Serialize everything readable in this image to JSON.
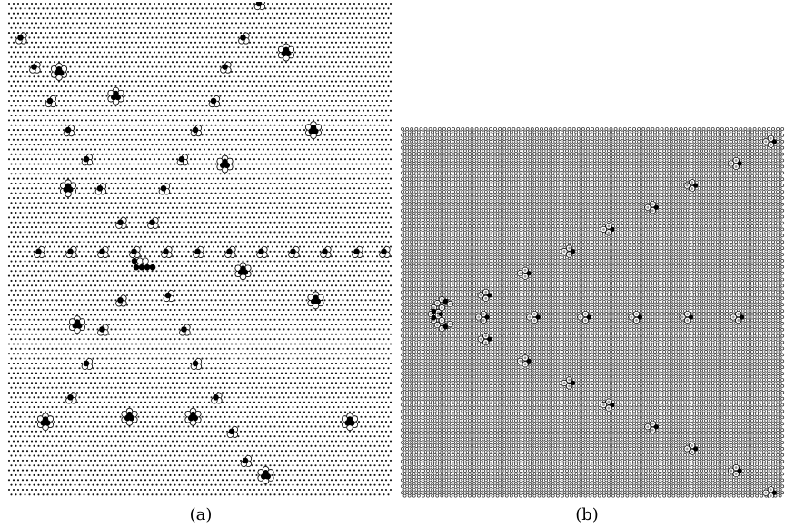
{
  "figure": {
    "panels": [
      {
        "id": "a",
        "caption": "(a)",
        "lattice": "hexagonal",
        "background_site_style": "small-black-dot",
        "clusters": [
          {
            "kind": "trimer",
            "gx": 55,
            "gy": 0
          },
          {
            "kind": "trimer",
            "gx": 2,
            "gy": 7
          },
          {
            "kind": "trimer",
            "gx": 51,
            "gy": 7
          },
          {
            "kind": "trimer",
            "gx": 5,
            "gy": 13
          },
          {
            "kind": "hexamer",
            "gx": 11,
            "gy": 14
          },
          {
            "kind": "trimer",
            "gx": 47,
            "gy": 13
          },
          {
            "kind": "hexamer",
            "gx": 61,
            "gy": 10
          },
          {
            "kind": "hexamer",
            "gx": 23,
            "gy": 19
          },
          {
            "kind": "trimer",
            "gx": 9,
            "gy": 20
          },
          {
            "kind": "trimer",
            "gx": 45,
            "gy": 20
          },
          {
            "kind": "trimer",
            "gx": 13,
            "gy": 26
          },
          {
            "kind": "trimer",
            "gx": 41,
            "gy": 26
          },
          {
            "kind": "hexamer",
            "gx": 67,
            "gy": 26
          },
          {
            "kind": "trimer",
            "gx": 17,
            "gy": 32
          },
          {
            "kind": "trimer",
            "gx": 38,
            "gy": 32
          },
          {
            "kind": "hexamer",
            "gx": 47,
            "gy": 33
          },
          {
            "kind": "hexamer",
            "gx": 13,
            "gy": 38
          },
          {
            "kind": "trimer",
            "gx": 20,
            "gy": 38
          },
          {
            "kind": "trimer",
            "gx": 34,
            "gy": 38
          },
          {
            "kind": "trimer",
            "gx": 24,
            "gy": 45
          },
          {
            "kind": "trimer",
            "gx": 31,
            "gy": 45
          },
          {
            "kind": "trimer",
            "gx": 6,
            "gy": 51
          },
          {
            "kind": "trimer",
            "gx": 13,
            "gy": 51
          },
          {
            "kind": "trimer",
            "gx": 20,
            "gy": 51
          },
          {
            "kind": "trimer",
            "gx": 27,
            "gy": 51
          },
          {
            "kind": "trimer",
            "gx": 34,
            "gy": 51
          },
          {
            "kind": "trimer",
            "gx": 41,
            "gy": 51
          },
          {
            "kind": "trimer",
            "gx": 48,
            "gy": 51
          },
          {
            "kind": "trimer",
            "gx": 55,
            "gy": 51
          },
          {
            "kind": "trimer",
            "gx": 62,
            "gy": 51
          },
          {
            "kind": "trimer",
            "gx": 69,
            "gy": 51
          },
          {
            "kind": "trimer",
            "gx": 76,
            "gy": 51
          },
          {
            "kind": "trimer",
            "gx": 82,
            "gy": 51
          },
          {
            "kind": "chain",
            "gx": 28,
            "gy": 52
          },
          {
            "kind": "hexamer",
            "gx": 51,
            "gy": 55
          },
          {
            "kind": "trimer",
            "gx": 24,
            "gy": 61
          },
          {
            "kind": "trimer",
            "gx": 35,
            "gy": 60
          },
          {
            "kind": "hexamer",
            "gx": 67,
            "gy": 61
          },
          {
            "kind": "hexamer",
            "gx": 15,
            "gy": 66
          },
          {
            "kind": "trimer",
            "gx": 20,
            "gy": 67
          },
          {
            "kind": "trimer",
            "gx": 38,
            "gy": 67
          },
          {
            "kind": "trimer",
            "gx": 17,
            "gy": 74
          },
          {
            "kind": "trimer",
            "gx": 41,
            "gy": 74
          },
          {
            "kind": "trimer",
            "gx": 13,
            "gy": 81
          },
          {
            "kind": "trimer",
            "gx": 45,
            "gy": 81
          },
          {
            "kind": "hexamer",
            "gx": 8,
            "gy": 86
          },
          {
            "kind": "hexamer",
            "gx": 26,
            "gy": 85
          },
          {
            "kind": "hexamer",
            "gx": 40,
            "gy": 85
          },
          {
            "kind": "hexamer",
            "gx": 75,
            "gy": 86
          },
          {
            "kind": "trimer",
            "gx": 49,
            "gy": 88
          },
          {
            "kind": "trimer",
            "gx": 52,
            "gy": 94
          },
          {
            "kind": "hexamer",
            "gx": 56,
            "gy": 97
          }
        ]
      },
      {
        "id": "b",
        "caption": "(b)",
        "lattice": "hexagonal",
        "background_site_style": "small-open-circle",
        "clusters": [
          {
            "kind": "trimer-b",
            "gx": 79,
            "gy": 4
          },
          {
            "kind": "trimer-b",
            "gx": 71,
            "gy": 11
          },
          {
            "kind": "trimer-b",
            "gx": 62,
            "gy": 18
          },
          {
            "kind": "trimer-b",
            "gx": 53,
            "gy": 25
          },
          {
            "kind": "trimer-b",
            "gx": 44,
            "gy": 32
          },
          {
            "kind": "trimer-b",
            "gx": 35,
            "gy": 39
          },
          {
            "kind": "trimer-b",
            "gx": 26,
            "gy": 46
          },
          {
            "kind": "trimer-b",
            "gx": 17,
            "gy": 53
          },
          {
            "kind": "source",
            "gx": 8,
            "gy": 59
          },
          {
            "kind": "trimer-b",
            "gx": 17,
            "gy": 60
          },
          {
            "kind": "trimer-b",
            "gx": 28,
            "gy": 60
          },
          {
            "kind": "trimer-b",
            "gx": 39,
            "gy": 60
          },
          {
            "kind": "trimer-b",
            "gx": 50,
            "gy": 60
          },
          {
            "kind": "trimer-b",
            "gx": 61,
            "gy": 60
          },
          {
            "kind": "trimer-b",
            "gx": 72,
            "gy": 60
          },
          {
            "kind": "trimer-b",
            "gx": 17,
            "gy": 67
          },
          {
            "kind": "trimer-b",
            "gx": 26,
            "gy": 74
          },
          {
            "kind": "trimer-b",
            "gx": 35,
            "gy": 81
          },
          {
            "kind": "trimer-b",
            "gx": 44,
            "gy": 88
          },
          {
            "kind": "trimer-b",
            "gx": 53,
            "gy": 95
          },
          {
            "kind": "trimer-b",
            "gx": 62,
            "gy": 102
          },
          {
            "kind": "trimer-b",
            "gx": 71,
            "gy": 109
          },
          {
            "kind": "trimer-b",
            "gx": 79,
            "gy": 116
          }
        ]
      }
    ]
  }
}
